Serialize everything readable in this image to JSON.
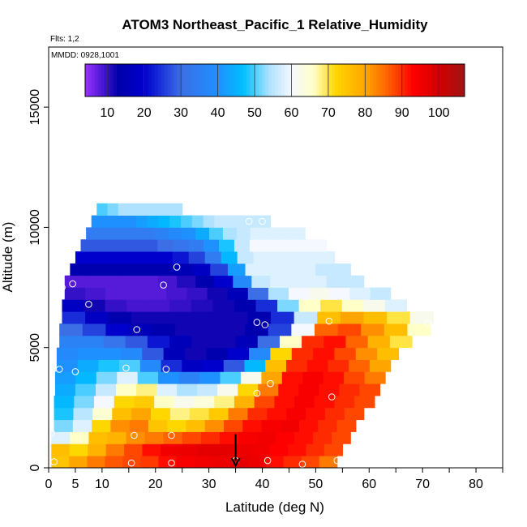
{
  "chart_data": {
    "type": "heatmap",
    "title": "ATOM3 Northeast_Pacific_1 Relative_Humidity",
    "flights_label": "Flts: 1,2",
    "dates_label": "MMDD: 0928,1001",
    "xlabel": "Latitude (deg N)",
    "ylabel": "Altitude (m)",
    "xlim": [
      0,
      85
    ],
    "ylim": [
      0,
      17500
    ],
    "x_ticks": [
      0,
      5,
      10,
      20,
      30,
      40,
      50,
      60,
      70,
      80
    ],
    "y_ticks": [
      0,
      5000,
      10000,
      15000
    ],
    "colorbar": {
      "range": [
        4,
        107
      ],
      "ticks": [
        10,
        20,
        30,
        40,
        50,
        60,
        70,
        80,
        90,
        100
      ],
      "colors": [
        {
          "v": 4,
          "c": "#9b30ff"
        },
        {
          "v": 13,
          "c": "#0000aa"
        },
        {
          "v": 20,
          "c": "#0000cd"
        },
        {
          "v": 30,
          "c": "#3c6ee6"
        },
        {
          "v": 40,
          "c": "#1e90ff"
        },
        {
          "v": 47,
          "c": "#00bfff"
        },
        {
          "v": 54,
          "c": "#aee2ff"
        },
        {
          "v": 60,
          "c": "#f5f8ff"
        },
        {
          "v": 66,
          "c": "#ffffc8"
        },
        {
          "v": 72,
          "c": "#ffd700"
        },
        {
          "v": 80,
          "c": "#ffa500"
        },
        {
          "v": 86,
          "c": "#ff6400"
        },
        {
          "v": 93,
          "c": "#ff0000"
        },
        {
          "v": 100,
          "c": "#d20000"
        },
        {
          "v": 107,
          "c": "#a01414"
        }
      ]
    },
    "rows": [
      {
        "alt": 250,
        "x0": 0.5,
        "x1": 54,
        "v": [
          75,
          80,
          84,
          87,
          88,
          89,
          92,
          94,
          95,
          96,
          97,
          96,
          92,
          90,
          88,
          84
        ]
      },
      {
        "alt": 750,
        "x0": 0.5,
        "x1": 55,
        "v": [
          76,
          72,
          78,
          84,
          88,
          92,
          95,
          96,
          97,
          97,
          96,
          95,
          93,
          92,
          90,
          88
        ]
      },
      {
        "alt": 1250,
        "x0": 0.5,
        "x1": 56.5,
        "v": [
          58,
          66,
          76,
          78,
          82,
          84,
          86,
          88,
          90,
          92,
          94,
          95,
          93,
          92,
          90,
          88
        ]
      },
      {
        "alt": 1750,
        "x0": 1,
        "x1": 57.5,
        "v": [
          52,
          58,
          72,
          82,
          84,
          75,
          72,
          76,
          82,
          88,
          92,
          94,
          95,
          92,
          90,
          88
        ]
      },
      {
        "alt": 2250,
        "x0": 1,
        "x1": 59,
        "v": [
          48,
          55,
          65,
          76,
          80,
          72,
          68,
          70,
          74,
          84,
          90,
          92,
          94,
          92,
          90,
          88
        ]
      },
      {
        "alt": 2750,
        "x0": 1,
        "x1": 61,
        "v": [
          46,
          52,
          60,
          72,
          74,
          66,
          62,
          64,
          68,
          78,
          88,
          92,
          94,
          92,
          90,
          88
        ]
      },
      {
        "alt": 3250,
        "x0": 1.2,
        "x1": 62,
        "v": [
          44,
          50,
          56,
          66,
          68,
          58,
          54,
          56,
          62,
          72,
          84,
          92,
          94,
          92,
          90,
          88
        ]
      },
      {
        "alt": 3750,
        "x0": 1.2,
        "x1": 63,
        "v": [
          42,
          46,
          52,
          58,
          50,
          40,
          36,
          40,
          50,
          62,
          80,
          92,
          94,
          92,
          88,
          84
        ]
      },
      {
        "alt": 4250,
        "x0": 1.5,
        "x1": 64,
        "v": [
          40,
          44,
          48,
          50,
          38,
          24,
          18,
          20,
          28,
          46,
          76,
          90,
          92,
          90,
          86,
          80
        ]
      },
      {
        "alt": 4750,
        "x0": 1.5,
        "x1": 65.5,
        "v": [
          38,
          40,
          40,
          38,
          28,
          16,
          12,
          14,
          20,
          38,
          72,
          90,
          92,
          88,
          82,
          76
        ]
      },
      {
        "alt": 5250,
        "x0": 2,
        "x1": 68,
        "v": [
          36,
          36,
          32,
          28,
          22,
          16,
          12,
          12,
          16,
          30,
          66,
          90,
          92,
          86,
          78,
          70
        ]
      },
      {
        "alt": 5750,
        "x0": 2,
        "x1": 71.5,
        "v": [
          30,
          26,
          20,
          16,
          14,
          12,
          12,
          12,
          14,
          26,
          60,
          86,
          88,
          82,
          76,
          66
        ]
      },
      {
        "alt": 6250,
        "x0": 2.5,
        "x1": 72,
        "v": [
          24,
          18,
          14,
          12,
          12,
          12,
          12,
          12,
          14,
          24,
          56,
          76,
          80,
          76,
          70,
          62
        ]
      },
      {
        "alt": 6750,
        "x0": 2.5,
        "x1": 67,
        "v": [
          18,
          12,
          10,
          9,
          9,
          10,
          11,
          12,
          14,
          24,
          52,
          66,
          70,
          66,
          62,
          58
        ]
      },
      {
        "alt": 7250,
        "x0": 3,
        "x1": 64,
        "v": [
          10,
          9,
          8,
          8,
          8,
          9,
          10,
          12,
          16,
          30,
          54,
          60,
          62,
          60,
          58,
          56
        ]
      },
      {
        "alt": 7750,
        "x0": 3,
        "x1": 59,
        "v": [
          8,
          8,
          8,
          8,
          8,
          9,
          11,
          14,
          20,
          38,
          56,
          58,
          58,
          58,
          56,
          56
        ]
      },
      {
        "alt": 8250,
        "x0": 4,
        "x1": 56.5,
        "v": [
          14,
          14,
          14,
          14,
          14,
          14,
          15,
          18,
          26,
          42,
          58,
          58,
          58,
          58,
          56,
          56
        ]
      },
      {
        "alt": 8750,
        "x0": 5,
        "x1": 53.5,
        "v": [
          20,
          20,
          20,
          20,
          20,
          20,
          22,
          26,
          34,
          46,
          56,
          58,
          58,
          58,
          58,
          58
        ]
      },
      {
        "alt": 9250,
        "x0": 6,
        "x1": 52,
        "v": [
          28,
          28,
          28,
          28,
          28,
          30,
          32,
          34,
          40,
          48,
          56,
          60,
          60,
          60,
          60,
          60
        ]
      },
      {
        "alt": 9750,
        "x0": 7,
        "x1": 48,
        "v": [
          34,
          34,
          34,
          34,
          34,
          36,
          38,
          40,
          44,
          50,
          54,
          56,
          58,
          58,
          58,
          58
        ]
      },
      {
        "alt": 10250,
        "x0": 8,
        "x1": 41.5,
        "v": [
          40,
          40,
          40,
          40,
          42,
          44,
          46,
          48,
          50,
          52,
          54,
          56,
          56,
          56,
          56,
          56
        ]
      },
      {
        "alt": 10750,
        "x0": 9,
        "x1": 25,
        "v": [
          50,
          50,
          52,
          52,
          54,
          54,
          54,
          54,
          54,
          54,
          54,
          54,
          54,
          54,
          54,
          54
        ]
      }
    ],
    "observation_points": [
      [
        1,
        250
      ],
      [
        15.5,
        200
      ],
      [
        23,
        200
      ],
      [
        35,
        300
      ],
      [
        41,
        300
      ],
      [
        47.5,
        150
      ],
      [
        54,
        300
      ],
      [
        0.5,
        1450
      ],
      [
        16,
        1350
      ],
      [
        23,
        1350
      ],
      [
        2,
        4100
      ],
      [
        5,
        4000
      ],
      [
        14.5,
        4150
      ],
      [
        22,
        4100
      ],
      [
        39,
        3100
      ],
      [
        41.5,
        3500
      ],
      [
        53,
        2950
      ],
      [
        2.5,
        7500
      ],
      [
        4.5,
        7650
      ],
      [
        7.5,
        6800
      ],
      [
        21.5,
        7600
      ],
      [
        24,
        8350
      ],
      [
        16.5,
        5750
      ],
      [
        39,
        6050
      ],
      [
        40.5,
        5950
      ],
      [
        52.5,
        6100
      ],
      [
        71,
        6000
      ],
      [
        37.5,
        10250
      ],
      [
        40,
        10250
      ]
    ],
    "marker": {
      "x": 35,
      "y": 700,
      "label": "down-arrow"
    }
  }
}
